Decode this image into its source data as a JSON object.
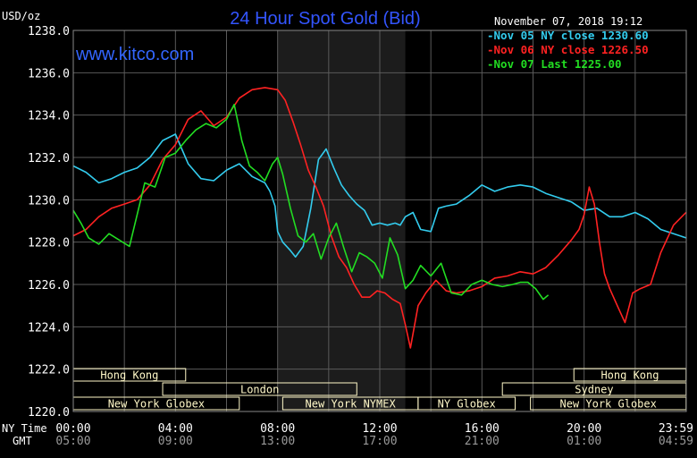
{
  "header": {
    "unit": "USD/oz",
    "title": "24 Hour Spot Gold (Bid)",
    "timestamp": "November 07, 2018 19:12",
    "website": "www.kitco.com"
  },
  "legend": [
    {
      "label": "Nov 05 NY close 1230.60",
      "color": "#33ccee"
    },
    {
      "label": "Nov 06 NY close 1226.50",
      "color": "#ff2222"
    },
    {
      "label": "Nov 07 Last 1225.00",
      "color": "#22dd22"
    }
  ],
  "time_rows": {
    "ny_label": "NY Time",
    "gmt_label": "GMT",
    "ny_ticks": [
      "00:00",
      "04:00",
      "08:00",
      "12:00",
      "16:00",
      "20:00",
      "23:59"
    ],
    "gmt_ticks": [
      "05:00",
      "09:00",
      "13:00",
      "17:00",
      "21:00",
      "01:00",
      "04:59"
    ]
  },
  "sessions": [
    {
      "label": "Hong Kong",
      "start": 0,
      "end": 4.4,
      "row": 0
    },
    {
      "label": "Hong Kong",
      "start": 19.6,
      "end": 23.99,
      "row": 0
    },
    {
      "label": "London",
      "start": 3.5,
      "end": 11.1,
      "row": 1
    },
    {
      "label": "Sydney",
      "start": 16.8,
      "end": 23.99,
      "row": 1
    },
    {
      "label": "New York Globex",
      "start": 0,
      "end": 6.5,
      "row": 2
    },
    {
      "label": "New York NYMEX",
      "start": 8.2,
      "end": 13.5,
      "row": 2
    },
    {
      "label": "NY Globex",
      "start": 13.5,
      "end": 17.3,
      "row": 2
    },
    {
      "label": "New York Globex",
      "start": 17.9,
      "end": 23.99,
      "row": 2
    }
  ],
  "colors": {
    "background": "#000000",
    "plot_bg": "#000000",
    "shade": "#1c1c1c",
    "grid": "#5a5a5a",
    "title": "#3355ff",
    "website": "#3366ff",
    "session_fill": "#fff8c8"
  },
  "chart_data": {
    "type": "line",
    "title": "24 Hour Spot Gold (Bid)",
    "xlabel": "NY Time",
    "ylabel": "USD/oz",
    "xlim": [
      0,
      24
    ],
    "ylim": [
      1220,
      1238
    ],
    "yticks": [
      "1238.0",
      "1236.0",
      "1234.0",
      "1232.0",
      "1230.0",
      "1228.0",
      "1226.0",
      "1224.0",
      "1222.0",
      "1220.0"
    ],
    "shaded_region": [
      8.0,
      13.0
    ],
    "grid": true,
    "series": [
      {
        "name": "Nov 05 NY close 1230.60",
        "x": [
          0,
          0.5,
          1.0,
          1.5,
          2.0,
          2.5,
          3.0,
          3.5,
          4.0,
          4.5,
          5.0,
          5.5,
          6.0,
          6.5,
          7.0,
          7.5,
          7.7,
          7.9,
          8.0,
          8.2,
          8.5,
          8.7,
          9.0,
          9.3,
          9.6,
          9.9,
          10.2,
          10.5,
          10.8,
          11.1,
          11.4,
          11.7,
          12.0,
          12.3,
          12.6,
          12.8,
          13.0,
          13.3,
          13.6,
          14.0,
          14.3,
          14.6,
          15.0,
          15.5,
          16.0,
          16.5,
          17.0,
          17.5,
          18.0,
          18.5,
          19.0,
          19.5,
          20.0,
          20.5,
          21.0,
          21.5,
          22.0,
          22.5,
          23.0,
          23.5,
          23.99
        ],
        "values": [
          1231.6,
          1231.3,
          1230.8,
          1231.0,
          1231.3,
          1231.5,
          1232.0,
          1232.8,
          1233.1,
          1231.7,
          1231.0,
          1230.9,
          1231.4,
          1231.7,
          1231.1,
          1230.8,
          1230.4,
          1229.7,
          1228.5,
          1228.0,
          1227.6,
          1227.3,
          1227.8,
          1229.6,
          1231.9,
          1232.4,
          1231.5,
          1230.7,
          1230.2,
          1229.8,
          1229.5,
          1228.8,
          1228.9,
          1228.8,
          1228.9,
          1228.8,
          1229.2,
          1229.4,
          1228.6,
          1228.5,
          1229.6,
          1229.7,
          1229.8,
          1230.2,
          1230.7,
          1230.4,
          1230.6,
          1230.7,
          1230.6,
          1230.3,
          1230.1,
          1229.9,
          1229.5,
          1229.6,
          1229.2,
          1229.2,
          1229.4,
          1229.1,
          1228.6,
          1228.4,
          1228.2
        ]
      },
      {
        "name": "Nov 06 NY close 1226.50",
        "x": [
          0,
          0.5,
          1.0,
          1.5,
          2.0,
          2.5,
          3.0,
          3.5,
          4.0,
          4.5,
          5.0,
          5.5,
          6.0,
          6.5,
          7.0,
          7.5,
          8.0,
          8.3,
          8.6,
          8.9,
          9.2,
          9.5,
          9.8,
          10.1,
          10.4,
          10.7,
          11.0,
          11.3,
          11.6,
          11.9,
          12.2,
          12.5,
          12.8,
          13.0,
          13.2,
          13.5,
          13.8,
          14.2,
          14.6,
          15.0,
          15.5,
          16.0,
          16.5,
          17.0,
          17.5,
          18.0,
          18.5,
          19.0,
          19.5,
          19.8,
          20.0,
          20.2,
          20.4,
          20.6,
          20.8,
          21.0,
          21.3,
          21.6,
          21.9,
          22.2,
          22.6,
          23.0,
          23.5,
          23.99
        ],
        "values": [
          1228.3,
          1228.6,
          1229.2,
          1229.6,
          1229.8,
          1230.0,
          1230.7,
          1231.9,
          1232.6,
          1233.8,
          1234.2,
          1233.5,
          1233.9,
          1234.8,
          1235.2,
          1235.3,
          1235.2,
          1234.7,
          1233.7,
          1232.6,
          1231.4,
          1230.6,
          1229.7,
          1228.3,
          1227.3,
          1226.8,
          1226.0,
          1225.4,
          1225.4,
          1225.7,
          1225.6,
          1225.3,
          1225.1,
          1224.1,
          1223.0,
          1225.0,
          1225.6,
          1226.2,
          1225.7,
          1225.6,
          1225.7,
          1225.9,
          1226.3,
          1226.4,
          1226.6,
          1226.5,
          1226.8,
          1227.4,
          1228.1,
          1228.6,
          1229.3,
          1230.6,
          1229.8,
          1228.0,
          1226.5,
          1225.8,
          1225.0,
          1224.2,
          1225.6,
          1225.8,
          1226.0,
          1227.5,
          1228.8,
          1229.4
        ]
      },
      {
        "name": "Nov 07 Last 1225.00",
        "x": [
          0,
          0.3,
          0.6,
          1.0,
          1.4,
          1.8,
          2.2,
          2.5,
          2.8,
          3.2,
          3.6,
          4.0,
          4.4,
          4.8,
          5.2,
          5.6,
          6.0,
          6.3,
          6.6,
          6.9,
          7.2,
          7.5,
          7.8,
          8.0,
          8.2,
          8.5,
          8.8,
          9.1,
          9.4,
          9.7,
          10.0,
          10.3,
          10.6,
          10.9,
          11.2,
          11.5,
          11.8,
          12.1,
          12.4,
          12.7,
          13.0,
          13.3,
          13.6,
          14.0,
          14.4,
          14.8,
          15.2,
          15.6,
          16.0,
          16.4,
          16.8,
          17.2,
          17.5,
          17.8,
          18.1,
          18.4,
          18.6
        ],
        "values": [
          1229.5,
          1228.9,
          1228.2,
          1227.9,
          1228.4,
          1228.1,
          1227.8,
          1229.3,
          1230.8,
          1230.6,
          1232.0,
          1232.2,
          1232.8,
          1233.3,
          1233.6,
          1233.4,
          1233.8,
          1234.5,
          1232.8,
          1231.6,
          1231.3,
          1230.9,
          1231.7,
          1232.0,
          1231.2,
          1229.6,
          1228.3,
          1228.0,
          1228.4,
          1227.2,
          1228.2,
          1228.9,
          1227.7,
          1226.6,
          1227.5,
          1227.3,
          1227.0,
          1226.3,
          1228.2,
          1227.4,
          1225.8,
          1226.2,
          1226.9,
          1226.4,
          1227.0,
          1225.6,
          1225.5,
          1226.0,
          1226.2,
          1226.0,
          1225.9,
          1226.0,
          1226.1,
          1226.1,
          1225.8,
          1225.3,
          1225.5
        ]
      }
    ]
  }
}
